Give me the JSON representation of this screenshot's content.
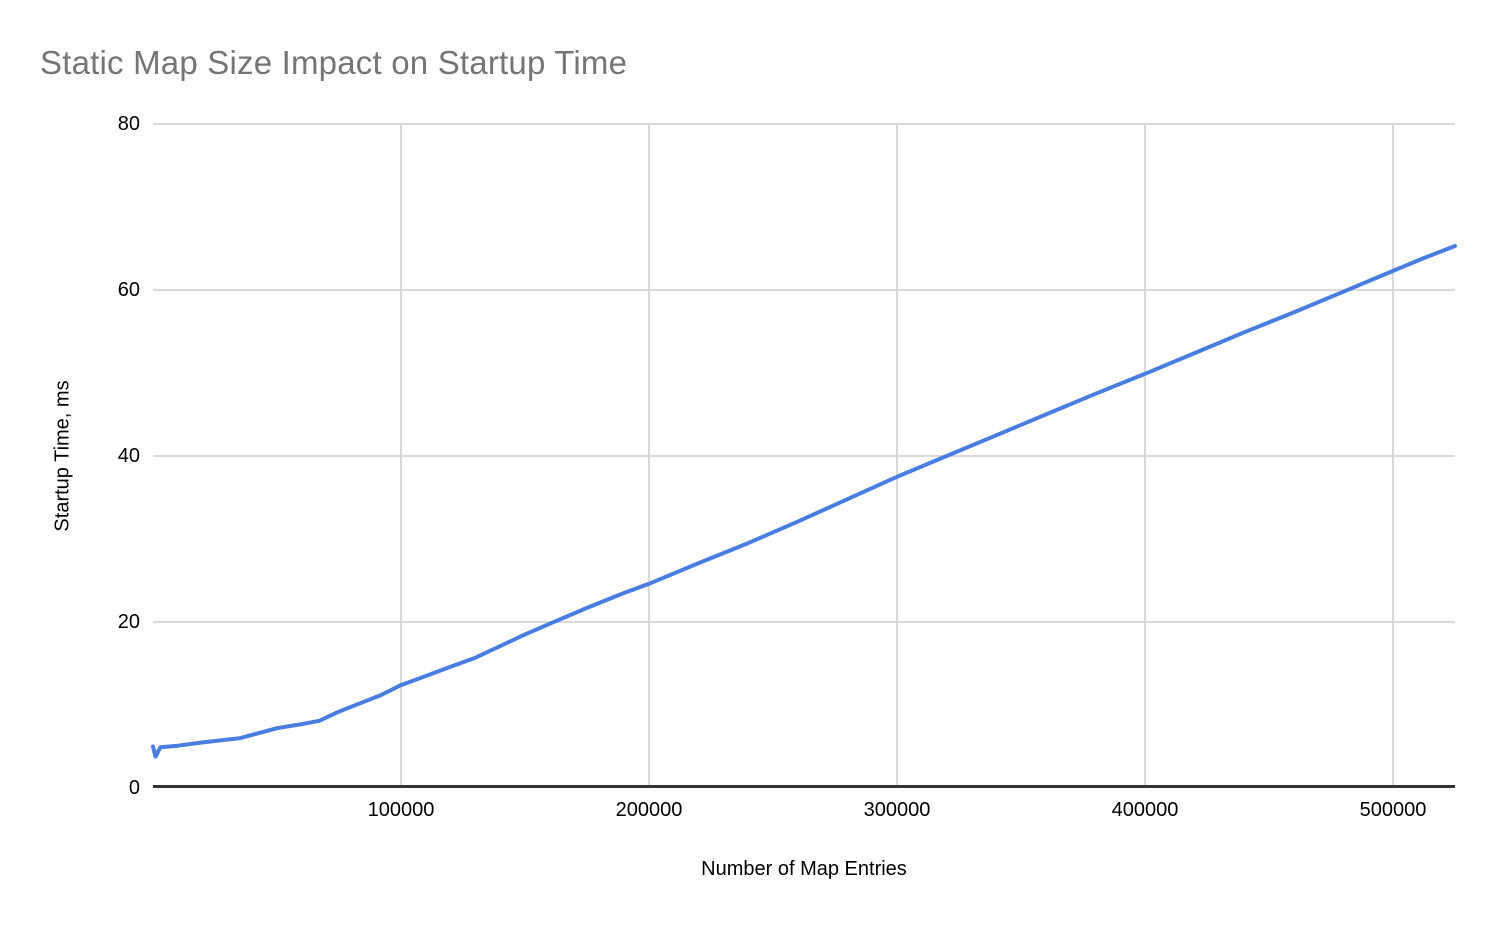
{
  "page": {
    "background": "#ffffff"
  },
  "chart_data": {
    "type": "line",
    "title": "Static Map Size Impact on Startup Time",
    "xlabel": "Number of Map Entries",
    "ylabel": "Startup Time, ms",
    "xlim": [
      0,
      525000
    ],
    "ylim": [
      0,
      80
    ],
    "x_ticks": [
      100000,
      200000,
      300000,
      400000,
      500000
    ],
    "y_ticks": [
      0,
      20,
      40,
      60,
      80
    ],
    "grid": true,
    "legend": "none",
    "colors": {
      "line": "#4a7de0",
      "gridline": "#d9d9d9",
      "baseline": "#333333",
      "title": "#757575",
      "tick_label": "#000000"
    },
    "series": [
      {
        "points": [
          [
            0,
            5.0
          ],
          [
            1000,
            3.8
          ],
          [
            3000,
            4.9
          ],
          [
            10000,
            5.1
          ],
          [
            20000,
            5.5
          ],
          [
            35000,
            6.0
          ],
          [
            50000,
            7.2
          ],
          [
            60000,
            7.7
          ],
          [
            67000,
            8.1
          ],
          [
            75000,
            9.2
          ],
          [
            80000,
            9.8
          ],
          [
            92000,
            11.2
          ],
          [
            100000,
            12.4
          ],
          [
            110000,
            13.5
          ],
          [
            120000,
            14.6
          ],
          [
            130000,
            15.7
          ],
          [
            140000,
            17.1
          ],
          [
            150000,
            18.5
          ],
          [
            160000,
            19.8
          ],
          [
            175000,
            21.7
          ],
          [
            190000,
            23.5
          ],
          [
            200000,
            24.6
          ],
          [
            220000,
            27.1
          ],
          [
            240000,
            29.5
          ],
          [
            260000,
            32.1
          ],
          [
            280000,
            34.8
          ],
          [
            300000,
            37.5
          ],
          [
            320000,
            40.0
          ],
          [
            340000,
            42.5
          ],
          [
            360000,
            45.0
          ],
          [
            380000,
            47.5
          ],
          [
            400000,
            49.9
          ],
          [
            420000,
            52.4
          ],
          [
            440000,
            54.9
          ],
          [
            460000,
            57.3
          ],
          [
            480000,
            59.8
          ],
          [
            500000,
            62.3
          ],
          [
            512000,
            63.8
          ],
          [
            525000,
            65.3
          ]
        ]
      }
    ]
  }
}
